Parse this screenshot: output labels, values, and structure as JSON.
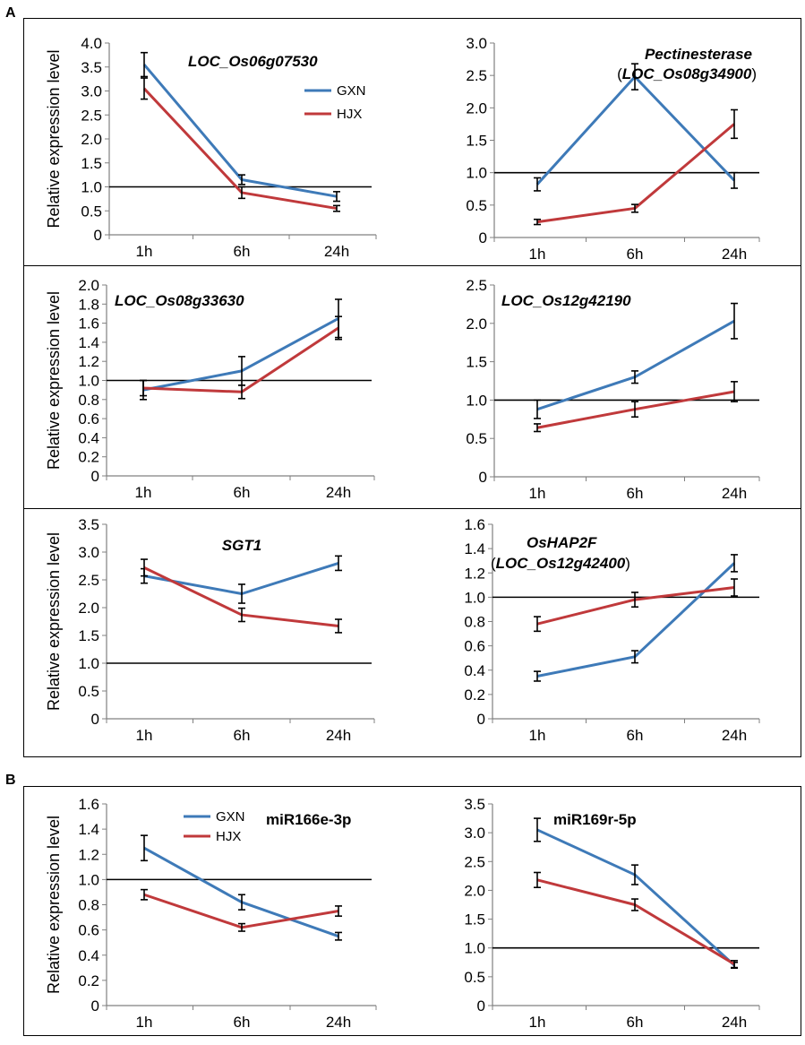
{
  "panels": {
    "A": "A",
    "B": "B"
  },
  "colors": {
    "GXN": "#3e7ab8",
    "HJX": "#c0393b",
    "axis": "#808080",
    "ref": "#000000"
  },
  "chart_data": [
    {
      "type": "line",
      "id": "c1",
      "title": "LOC_Os06g07530",
      "title_italic": true,
      "subtitle": null,
      "categories": [
        "1h",
        "6h",
        "24h"
      ],
      "ylabel": "Relative expression level",
      "ylim": [
        0,
        4.0
      ],
      "yticks": [
        "0",
        "0.5",
        "1.0",
        "1.5",
        "2.0",
        "2.5",
        "3.0",
        "3.5",
        "4.0"
      ],
      "reference_line": 1.0,
      "series": [
        {
          "name": "GXN",
          "values": [
            3.55,
            1.15,
            0.8
          ],
          "errors": [
            0.25,
            0.1,
            0.1
          ]
        },
        {
          "name": "HJX",
          "values": [
            3.05,
            0.88,
            0.55
          ],
          "errors": [
            0.22,
            0.12,
            0.06
          ]
        }
      ],
      "legend": [
        "GXN",
        "HJX"
      ]
    },
    {
      "type": "line",
      "id": "c2",
      "title": "Pectinesterase",
      "title_italic": true,
      "subtitle": "(LOC_Os08g34900)",
      "categories": [
        "1h",
        "6h",
        "24h"
      ],
      "ylabel": "",
      "ylim": [
        0,
        3.0
      ],
      "yticks": [
        "0",
        "0.5",
        "1.0",
        "1.5",
        "2.0",
        "2.5",
        "3.0"
      ],
      "reference_line": 1.0,
      "series": [
        {
          "name": "GXN",
          "values": [
            0.82,
            2.48,
            0.88
          ],
          "errors": [
            0.1,
            0.2,
            0.12
          ]
        },
        {
          "name": "HJX",
          "values": [
            0.24,
            0.45,
            1.75
          ],
          "errors": [
            0.04,
            0.06,
            0.22
          ]
        }
      ]
    },
    {
      "type": "line",
      "id": "c3",
      "title": "LOC_Os08g33630",
      "title_italic": true,
      "subtitle": null,
      "categories": [
        "1h",
        "6h",
        "24h"
      ],
      "ylabel": "Relative expression level",
      "ylim": [
        0,
        2.0
      ],
      "yticks": [
        "0",
        "0.2",
        "0.4",
        "0.6",
        "0.8",
        "1.0",
        "1.2",
        "1.4",
        "1.6",
        "1.8",
        "2.0"
      ],
      "reference_line": 1.0,
      "series": [
        {
          "name": "GXN",
          "values": [
            0.9,
            1.1,
            1.65
          ],
          "errors": [
            0.1,
            0.15,
            0.2
          ]
        },
        {
          "name": "HJX",
          "values": [
            0.92,
            0.88,
            1.55
          ],
          "errors": [
            0.08,
            0.07,
            0.12
          ]
        }
      ]
    },
    {
      "type": "line",
      "id": "c4",
      "title": "LOC_Os12g42190",
      "title_italic": true,
      "subtitle": null,
      "categories": [
        "1h",
        "6h",
        "24h"
      ],
      "ylabel": "",
      "ylim": [
        0,
        2.5
      ],
      "yticks": [
        "0",
        "0.5",
        "1.0",
        "1.5",
        "2.0",
        "2.5"
      ],
      "reference_line": 1.0,
      "series": [
        {
          "name": "GXN",
          "values": [
            0.88,
            1.3,
            2.03
          ],
          "errors": [
            0.12,
            0.08,
            0.23
          ]
        },
        {
          "name": "HJX",
          "values": [
            0.64,
            0.88,
            1.11
          ],
          "errors": [
            0.05,
            0.1,
            0.13
          ]
        }
      ]
    },
    {
      "type": "line",
      "id": "c5",
      "title": "SGT1",
      "title_italic": true,
      "subtitle": null,
      "categories": [
        "1h",
        "6h",
        "24h"
      ],
      "ylabel": "Relative expression level",
      "ylim": [
        0,
        3.5
      ],
      "yticks": [
        "0",
        "0.5",
        "1.0",
        "1.5",
        "2.0",
        "2.5",
        "3.0",
        "3.5"
      ],
      "reference_line": 1.0,
      "series": [
        {
          "name": "GXN",
          "values": [
            2.57,
            2.25,
            2.8
          ],
          "errors": [
            0.13,
            0.17,
            0.13
          ]
        },
        {
          "name": "HJX",
          "values": [
            2.72,
            1.87,
            1.67
          ],
          "errors": [
            0.15,
            0.12,
            0.12
          ]
        }
      ]
    },
    {
      "type": "line",
      "id": "c6",
      "title": "OsHAP2F",
      "title_italic": true,
      "subtitle": "(LOC_Os12g42400)",
      "categories": [
        "1h",
        "6h",
        "24h"
      ],
      "ylabel": "",
      "ylim": [
        0,
        1.6
      ],
      "yticks": [
        "0",
        "0.2",
        "0.4",
        "0.6",
        "0.8",
        "1.0",
        "1.2",
        "1.4",
        "1.6"
      ],
      "reference_line": 1.0,
      "series": [
        {
          "name": "GXN",
          "values": [
            0.35,
            0.51,
            1.28
          ],
          "errors": [
            0.04,
            0.05,
            0.07
          ]
        },
        {
          "name": "HJX",
          "values": [
            0.78,
            0.98,
            1.08
          ],
          "errors": [
            0.06,
            0.06,
            0.07
          ]
        }
      ]
    },
    {
      "type": "line",
      "id": "c7",
      "title": "miR166e-3p",
      "title_italic": false,
      "subtitle": null,
      "categories": [
        "1h",
        "6h",
        "24h"
      ],
      "ylabel": "Relative expression level",
      "ylim": [
        0,
        1.6
      ],
      "yticks": [
        "0",
        "0.2",
        "0.4",
        "0.6",
        "0.8",
        "1.0",
        "1.2",
        "1.4",
        "1.6"
      ],
      "reference_line": 1.0,
      "series": [
        {
          "name": "GXN",
          "values": [
            1.25,
            0.82,
            0.55
          ],
          "errors": [
            0.1,
            0.06,
            0.03
          ]
        },
        {
          "name": "HJX",
          "values": [
            0.88,
            0.62,
            0.75
          ],
          "errors": [
            0.04,
            0.03,
            0.04
          ]
        }
      ],
      "legend": [
        "GXN",
        "HJX"
      ]
    },
    {
      "type": "line",
      "id": "c8",
      "title": "miR169r-5p",
      "title_italic": false,
      "subtitle": null,
      "categories": [
        "1h",
        "6h",
        "24h"
      ],
      "ylabel": "",
      "ylim": [
        0,
        3.5
      ],
      "yticks": [
        "0",
        "0.5",
        "1.0",
        "1.5",
        "2.0",
        "2.5",
        "3.0",
        "3.5"
      ],
      "reference_line": 1.0,
      "series": [
        {
          "name": "GXN",
          "values": [
            3.05,
            2.27,
            0.7
          ],
          "errors": [
            0.2,
            0.17,
            0.05
          ]
        },
        {
          "name": "HJX",
          "values": [
            2.18,
            1.75,
            0.72
          ],
          "errors": [
            0.13,
            0.1,
            0.06
          ]
        }
      ]
    }
  ]
}
